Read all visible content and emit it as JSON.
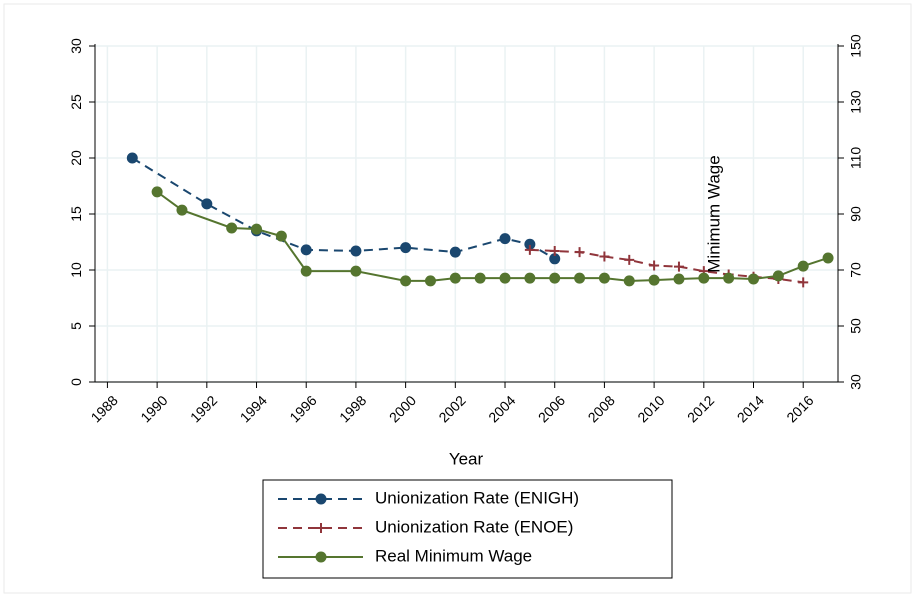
{
  "chart_data": {
    "type": "line",
    "xlabel": "Year",
    "annotation": "Minimum Wage",
    "xlim": [
      1987.5,
      2017.4
    ],
    "xticks": [
      1988,
      1990,
      1992,
      1994,
      1996,
      1998,
      2000,
      2002,
      2004,
      2006,
      2008,
      2010,
      2012,
      2014,
      2016
    ],
    "ylim": [
      0,
      30
    ],
    "yticks": [
      0,
      5,
      10,
      15,
      20,
      25,
      30
    ],
    "y2lim": [
      30,
      150
    ],
    "y2ticks": [
      30,
      50,
      70,
      90,
      110,
      130,
      150
    ],
    "grid": true,
    "legend": "bottom",
    "series": [
      {
        "name": "Unionization Rate (ENIGH)",
        "color": "#1a476f",
        "dash": true,
        "marker": "circle",
        "axis": "y",
        "x": [
          1989,
          1992,
          1994,
          1996,
          1998,
          2000,
          2002,
          2004,
          2005,
          2006
        ],
        "values": [
          20.0,
          15.9,
          13.5,
          11.8,
          11.7,
          12.0,
          11.6,
          12.8,
          12.3,
          11.0
        ]
      },
      {
        "name": "Unionization Rate (ENOE)",
        "color": "#90353b",
        "dash": true,
        "marker": "plus",
        "axis": "y",
        "x": [
          2005,
          2006,
          2007,
          2008,
          2009,
          2010,
          2011,
          2012,
          2013,
          2014,
          2015,
          2016
        ],
        "values": [
          11.8,
          11.7,
          11.6,
          11.2,
          10.9,
          10.4,
          10.3,
          9.9,
          9.6,
          9.4,
          9.2,
          8.9
        ]
      },
      {
        "name": "Real Minimum Wage",
        "color": "#55752f",
        "dash": false,
        "marker": "circle",
        "axis": "y2",
        "x": [
          1990,
          1991,
          1993,
          1994,
          1995,
          1996,
          1998,
          2000,
          2001,
          2002,
          2003,
          2004,
          2005,
          2006,
          2007,
          2008,
          2009,
          2010,
          2011,
          2012,
          2013,
          2014,
          2015,
          2016,
          2017
        ],
        "values": [
          97.9,
          91.4,
          85.0,
          84.6,
          82.1,
          69.6,
          69.6,
          66.1,
          66.1,
          67.1,
          67.1,
          67.1,
          67.1,
          67.1,
          67.1,
          67.1,
          66.1,
          66.4,
          66.8,
          67.1,
          67.1,
          66.8,
          67.9,
          71.4,
          74.3
        ]
      }
    ]
  }
}
